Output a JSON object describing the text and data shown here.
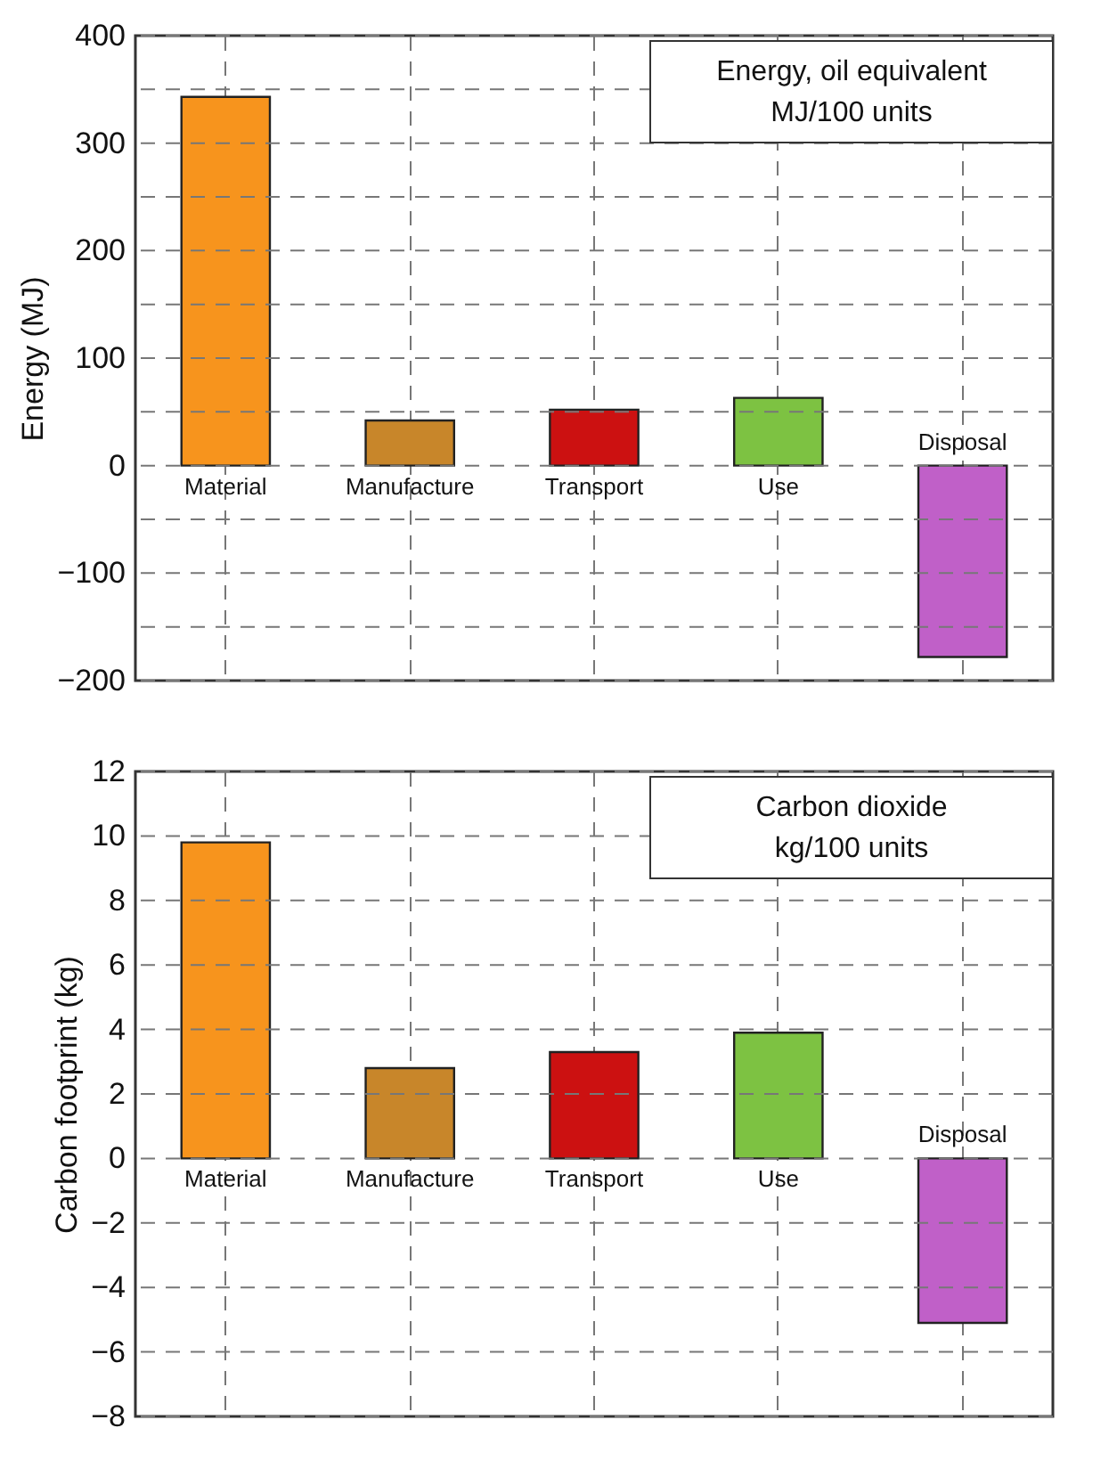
{
  "chart_data": [
    {
      "type": "bar",
      "title": "Energy, oil equivalent",
      "subtitle": "MJ/100 units",
      "ylabel": "Energy (MJ)",
      "categories": [
        "Material",
        "Manufacture",
        "Transport",
        "Use",
        "Disposal"
      ],
      "values": [
        343,
        42,
        52,
        63,
        -178
      ],
      "colors": [
        "#f7941d",
        "#c8862a",
        "#cc1111",
        "#7dc242",
        "#c060c8"
      ],
      "ylim": [
        -200,
        400
      ],
      "yticks": [
        -200,
        {
          "value": -150,
          "label": null
        },
        -100,
        {
          "value": -50,
          "label": null
        },
        0,
        {
          "value": 50,
          "label": null
        },
        100,
        {
          "value": 150,
          "label": null
        },
        200,
        {
          "value": 250,
          "label": null
        },
        300,
        {
          "value": 350,
          "label": null
        },
        400
      ],
      "grid": true
    },
    {
      "type": "bar",
      "title": "Carbon dioxide",
      "subtitle": "kg/100 units",
      "ylabel": "Carbon footprint (kg)",
      "categories": [
        "Material",
        "Manufacture",
        "Transport",
        "Use",
        "Disposal"
      ],
      "values": [
        9.8,
        2.8,
        3.3,
        3.9,
        -5.1
      ],
      "colors": [
        "#f7941d",
        "#c8862a",
        "#cc1111",
        "#7dc242",
        "#c060c8"
      ],
      "ylim": [
        -8,
        12
      ],
      "yticks": [
        -8,
        -6,
        -4,
        -2,
        0,
        2,
        4,
        6,
        8,
        10,
        12
      ],
      "grid": true
    }
  ]
}
